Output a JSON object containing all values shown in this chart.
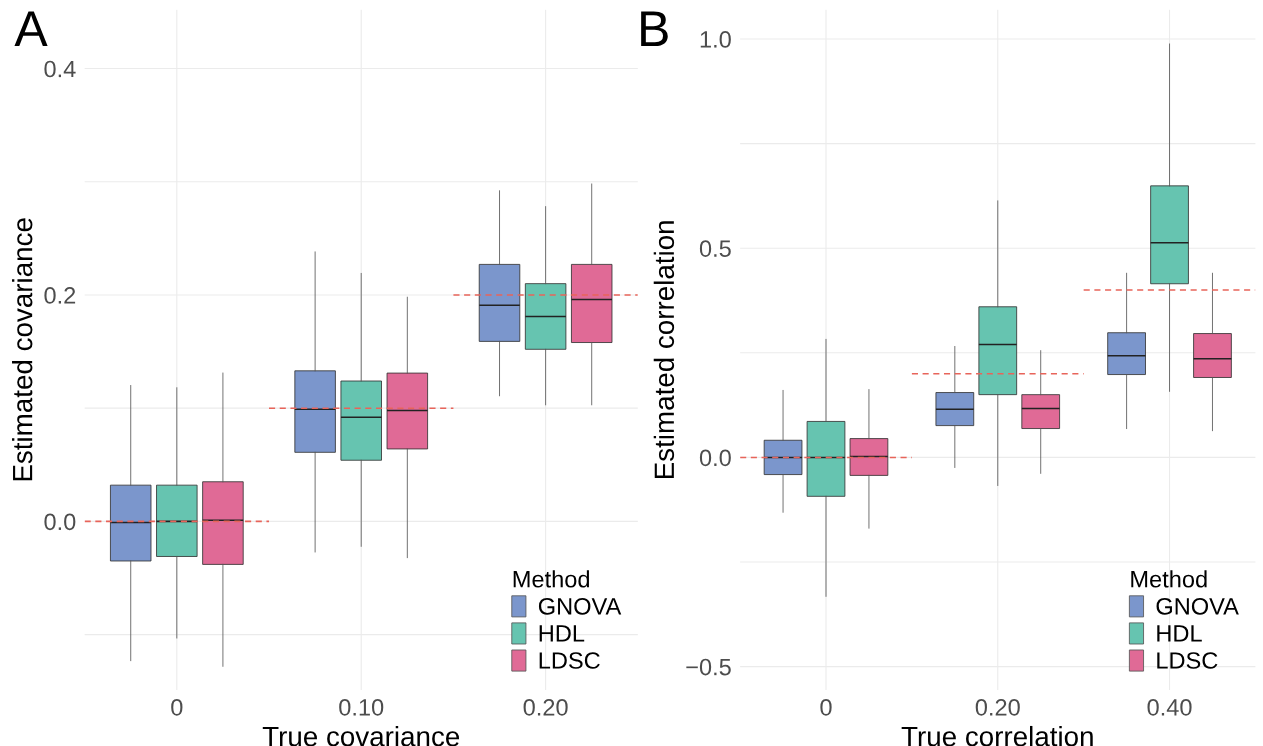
{
  "chart_data": [
    {
      "type": "box",
      "title": "A",
      "xlabel": "True covariance",
      "ylabel": "Estimated covariance",
      "legend_title": "Method",
      "legend": "bottom right",
      "grid": true,
      "categories": [
        "0",
        "0.10",
        "0.20"
      ],
      "ylim": [
        -0.149,
        0.452
      ],
      "yticks": [
        {
          "value": -0.1,
          "label": null
        },
        {
          "value": 0.0,
          "label": "0.0"
        },
        {
          "value": 0.1,
          "label": null
        },
        0.2,
        {
          "value": 0.3,
          "label": null
        },
        0.4
      ],
      "series": [
        {
          "name": "GNOVA",
          "color": "#7b96cc",
          "boxes": [
            {
              "low": -0.123,
              "q1": -0.035,
              "median": -0.001,
              "q3": 0.032,
              "high": 0.12
            },
            {
              "low": -0.027,
              "q1": 0.061,
              "median": 0.099,
              "q3": 0.133,
              "high": 0.238
            },
            {
              "low": 0.111,
              "q1": 0.159,
              "median": 0.191,
              "q3": 0.227,
              "high": 0.292
            }
          ]
        },
        {
          "name": "HDL",
          "color": "#66c4b0",
          "boxes": [
            {
              "low": -0.103,
              "q1": -0.031,
              "median": 0.0,
              "q3": 0.032,
              "high": 0.118
            },
            {
              "low": -0.022,
              "q1": 0.054,
              "median": 0.092,
              "q3": 0.124,
              "high": 0.219
            },
            {
              "low": 0.103,
              "q1": 0.152,
              "median": 0.181,
              "q3": 0.21,
              "high": 0.278
            }
          ]
        },
        {
          "name": "LDSC",
          "color": "#e06a96",
          "boxes": [
            {
              "low": -0.128,
              "q1": -0.038,
              "median": 0.001,
              "q3": 0.035,
              "high": 0.131
            },
            {
              "low": -0.032,
              "q1": 0.064,
              "median": 0.098,
              "q3": 0.131,
              "high": 0.198
            },
            {
              "low": 0.103,
              "q1": 0.158,
              "median": 0.196,
              "q3": 0.227,
              "high": 0.298
            }
          ]
        }
      ],
      "ref_lines": [
        {
          "axis": "y",
          "value": 0.0,
          "color": "#e8645a",
          "line_style": "dashed"
        },
        {
          "axis": "y",
          "value": 0.1,
          "color": "#e8645a",
          "line_style": "dashed"
        },
        {
          "axis": "y",
          "value": 0.2,
          "color": "#e8645a",
          "line_style": "dashed"
        }
      ]
    },
    {
      "type": "box",
      "title": "B",
      "xlabel": "True correlation",
      "ylabel": "Estimated correlation",
      "legend_title": "Method",
      "legend": "bottom right",
      "grid": true,
      "categories": [
        "0",
        "0.20",
        "0.40"
      ],
      "ylim": [
        -0.556,
        1.07
      ],
      "yticks": [
        {
          "value": -0.5,
          "label": "−0.5"
        },
        {
          "value": -0.25,
          "label": null
        },
        {
          "value": 0.0,
          "label": "0.0"
        },
        {
          "value": 0.25,
          "label": null
        },
        0.5,
        {
          "value": 0.75,
          "label": null
        },
        {
          "value": 1.0,
          "label": "1.0"
        }
      ],
      "series": [
        {
          "name": "GNOVA",
          "color": "#7b96cc",
          "boxes": [
            {
              "low": -0.131,
              "q1": -0.041,
              "median": 0.0,
              "q3": 0.041,
              "high": 0.16
            },
            {
              "low": -0.024,
              "q1": 0.076,
              "median": 0.115,
              "q3": 0.155,
              "high": 0.265
            },
            {
              "low": 0.069,
              "q1": 0.198,
              "median": 0.243,
              "q3": 0.298,
              "high": 0.44
            }
          ]
        },
        {
          "name": "HDL",
          "color": "#66c4b0",
          "boxes": [
            {
              "low": -0.332,
              "q1": -0.093,
              "median": 0.0,
              "q3": 0.086,
              "high": 0.282
            },
            {
              "low": -0.067,
              "q1": 0.15,
              "median": 0.27,
              "q3": 0.36,
              "high": 0.613
            },
            {
              "low": 0.158,
              "q1": 0.415,
              "median": 0.513,
              "q3": 0.649,
              "high": 0.988
            }
          ]
        },
        {
          "name": "LDSC",
          "color": "#e06a96",
          "boxes": [
            {
              "low": -0.169,
              "q1": -0.043,
              "median": 0.002,
              "q3": 0.045,
              "high": 0.162
            },
            {
              "low": -0.038,
              "q1": 0.069,
              "median": 0.117,
              "q3": 0.15,
              "high": 0.255
            },
            {
              "low": 0.064,
              "q1": 0.191,
              "median": 0.236,
              "q3": 0.296,
              "high": 0.44
            }
          ]
        }
      ],
      "ref_lines": [
        {
          "axis": "y",
          "value": 0.0,
          "color": "#e8645a",
          "line_style": "dashed"
        },
        {
          "axis": "y",
          "value": 0.2,
          "color": "#e8645a",
          "line_style": "dashed"
        },
        {
          "axis": "y",
          "value": 0.4,
          "color": "#e8645a",
          "line_style": "dashed"
        }
      ]
    }
  ]
}
